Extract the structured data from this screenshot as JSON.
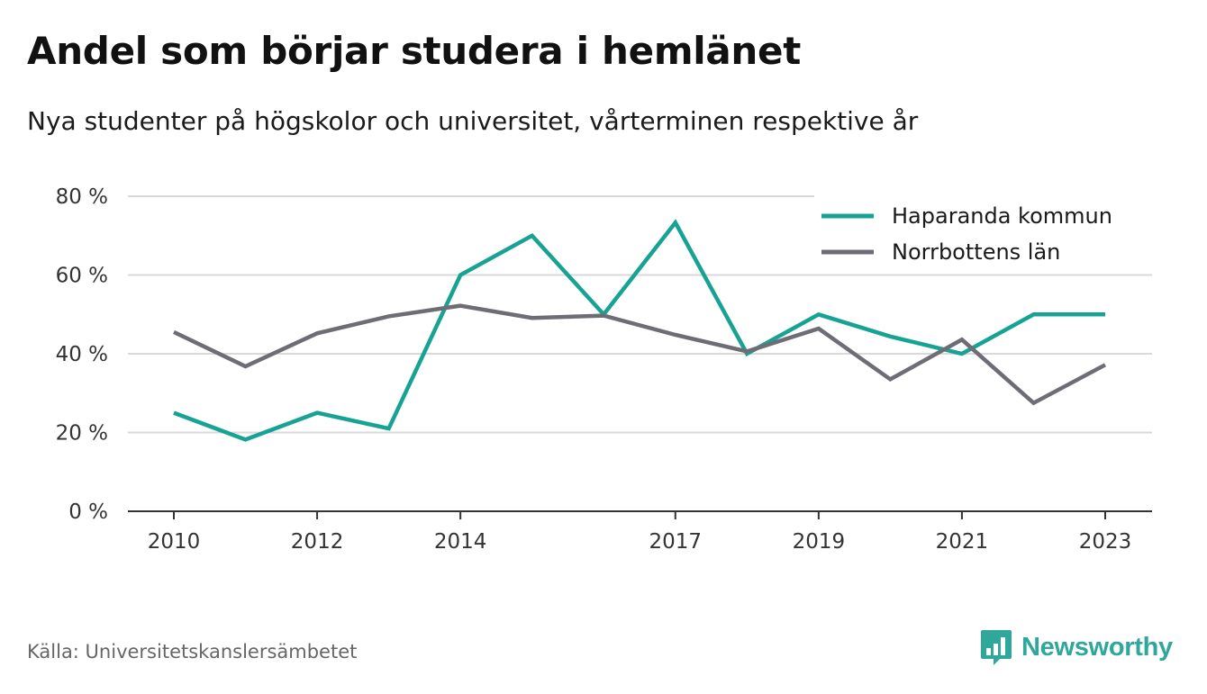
{
  "header": {
    "title": "Andel som börjar studera i hemlänet",
    "subtitle": "Nya studenter på högskolor och universitet, vårterminen respektive år"
  },
  "footer": {
    "source": "Källa: Universitetskanslersämbetet",
    "brand": "Newsworthy",
    "brand_icon": "bar-chart-speech-icon"
  },
  "colors": {
    "haparanda": "#16a394",
    "norrbotten": "#6e6d75",
    "grid": "#d9d9d9",
    "axis": "#333333",
    "brand": "#2fa79a"
  },
  "chart_data": {
    "type": "line",
    "x": [
      2010,
      2011,
      2012,
      2013,
      2014,
      2015,
      2016,
      2017,
      2018,
      2019,
      2020,
      2021,
      2022,
      2023
    ],
    "x_tick_labels": [
      "2010",
      "2012",
      "2014",
      "2017",
      "2019",
      "2021",
      "2023"
    ],
    "x_ticks": [
      2010,
      2012,
      2014,
      2017,
      2019,
      2021,
      2023
    ],
    "y_ticks": [
      0,
      20,
      40,
      60,
      80
    ],
    "y_tick_labels": [
      "0 %",
      "20 %",
      "40 %",
      "60 %",
      "80 %"
    ],
    "ylim": [
      0,
      80
    ],
    "grid": true,
    "legend_position": "top-right",
    "series": [
      {
        "name": "Haparanda kommun",
        "color": "#16a394",
        "values": [
          25,
          18.2,
          25,
          21,
          60,
          70,
          50,
          73.3,
          40,
          50,
          44.4,
          40,
          50,
          50
        ]
      },
      {
        "name": "Norrbottens län",
        "color": "#6e6d75",
        "values": [
          45.5,
          36.8,
          45.2,
          49.5,
          52.2,
          49.1,
          49.7,
          44.8,
          40.6,
          46.4,
          33.5,
          43.6,
          27.5,
          37.2
        ]
      }
    ]
  }
}
